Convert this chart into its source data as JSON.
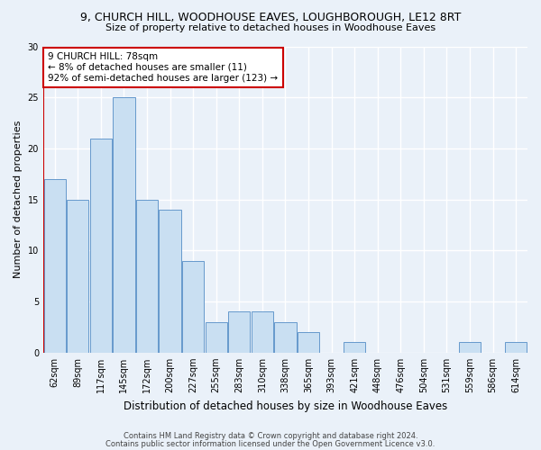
{
  "title1": "9, CHURCH HILL, WOODHOUSE EAVES, LOUGHBOROUGH, LE12 8RT",
  "title2": "Size of property relative to detached houses in Woodhouse Eaves",
  "xlabel": "Distribution of detached houses by size in Woodhouse Eaves",
  "ylabel": "Number of detached properties",
  "categories": [
    "62sqm",
    "89sqm",
    "117sqm",
    "145sqm",
    "172sqm",
    "200sqm",
    "227sqm",
    "255sqm",
    "283sqm",
    "310sqm",
    "338sqm",
    "365sqm",
    "393sqm",
    "421sqm",
    "448sqm",
    "476sqm",
    "504sqm",
    "531sqm",
    "559sqm",
    "586sqm",
    "614sqm"
  ],
  "values": [
    17,
    15,
    21,
    25,
    15,
    14,
    9,
    3,
    4,
    4,
    3,
    2,
    0,
    1,
    0,
    0,
    0,
    0,
    1,
    0,
    1
  ],
  "bar_color": "#c9dff2",
  "bar_edge_color": "#6699cc",
  "annotation_title": "9 CHURCH HILL: 78sqm",
  "annotation_line1": "← 8% of detached houses are smaller (11)",
  "annotation_line2": "92% of semi-detached houses are larger (123) →",
  "annotation_box_color": "#ffffff",
  "annotation_border_color": "#cc0000",
  "vline_color": "#cc0000",
  "vline_x_index": -0.5,
  "ylim": [
    0,
    30
  ],
  "yticks": [
    0,
    5,
    10,
    15,
    20,
    25,
    30
  ],
  "footer1": "Contains HM Land Registry data © Crown copyright and database right 2024.",
  "footer2": "Contains public sector information licensed under the Open Government Licence v3.0.",
  "background_color": "#eaf1f9",
  "grid_color": "#ffffff",
  "title1_fontsize": 9,
  "title2_fontsize": 8,
  "ylabel_fontsize": 8,
  "xlabel_fontsize": 8.5,
  "tick_fontsize": 7,
  "annotation_fontsize": 7.5,
  "footer_fontsize": 6
}
